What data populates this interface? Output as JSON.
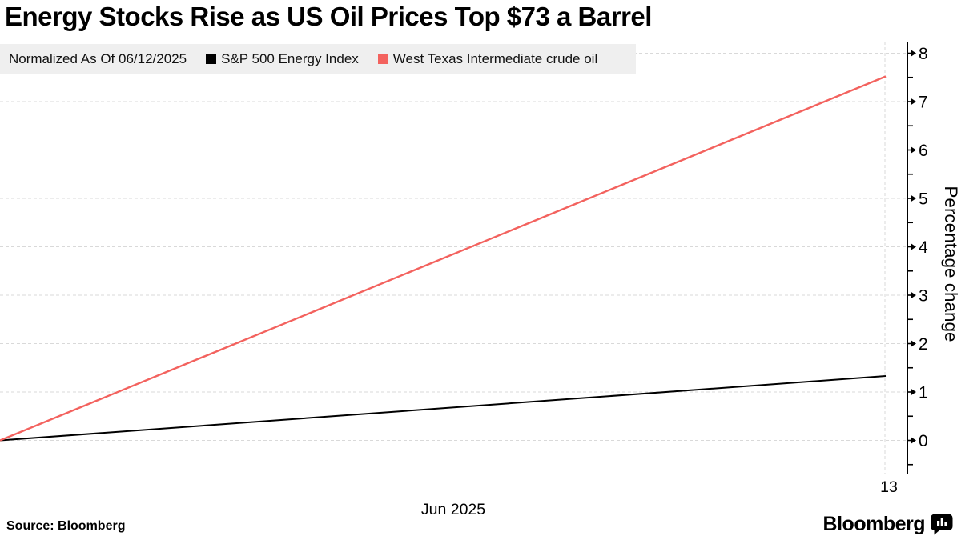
{
  "title": "Energy Stocks Rise as US Oil Prices Top $73 a Barrel",
  "legend": {
    "prefix": "Normalized As Of 06/12/2025",
    "items": [
      {
        "label": "S&P 500 Energy Index",
        "color": "#000000"
      },
      {
        "label": "West Texas Intermediate crude oil",
        "color": "#F3625E"
      }
    ]
  },
  "chart_data": {
    "type": "line",
    "title": "Energy Stocks Rise as US Oil Prices Top $73 a Barrel",
    "xlabel": "Jun 2025",
    "ylabel": "Percentage change",
    "ylim": [
      -0.7,
      8.3
    ],
    "y_major_ticks": [
      0,
      1,
      2,
      3,
      4,
      5,
      6,
      7,
      8
    ],
    "y_minor_ticks": [
      -0.5,
      0.5,
      1.5,
      2.5,
      3.5,
      4.5,
      5.5,
      6.5,
      7.5
    ],
    "x_tick_label": "13",
    "x_month_label": "Jun 2025",
    "normalized_as_of": "06/12/2025",
    "grid": "horizontal-dashed",
    "legend_position": "top-left",
    "series": [
      {
        "name": "S&P 500 Energy Index",
        "color": "#000000",
        "x": [
          12,
          13
        ],
        "values": [
          0,
          1.33
        ]
      },
      {
        "name": "West Texas Intermediate crude oil",
        "color": "#F3625E",
        "x": [
          12,
          13
        ],
        "values": [
          0,
          7.52
        ]
      }
    ]
  },
  "footer": {
    "source": "Source: Bloomberg",
    "brand": "Bloomberg",
    "brand_icon": "bar-chart-speech-bubble-icon"
  },
  "colors": {
    "grid": "#d9d9d9",
    "legend_bg": "#efefef",
    "axis": "#000000",
    "wti_red": "#F3625E",
    "sp_black": "#000000"
  }
}
